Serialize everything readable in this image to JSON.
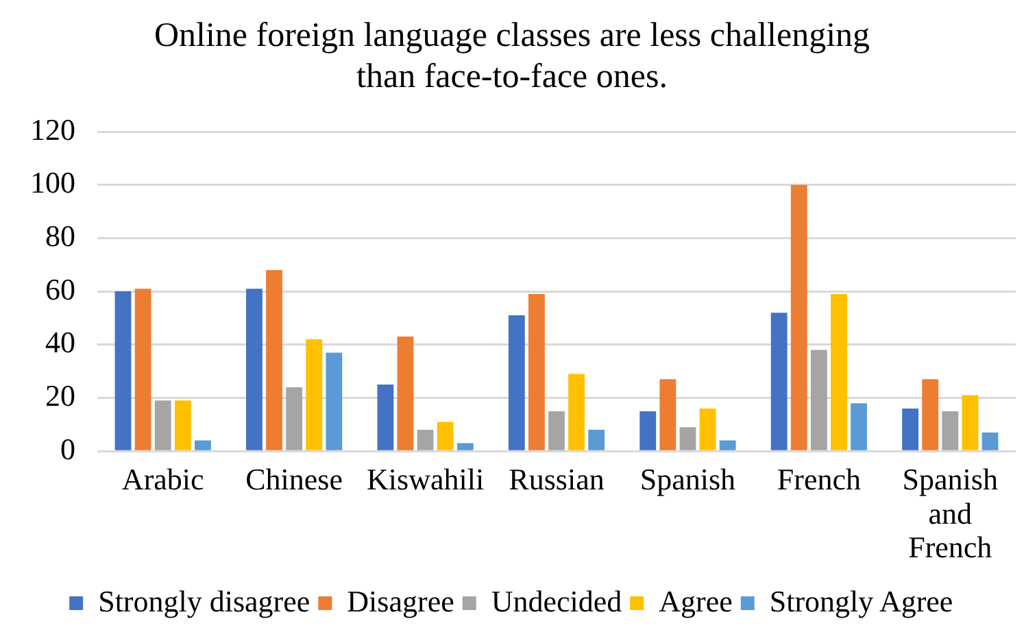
{
  "chart_data": {
    "type": "bar",
    "title": "Online foreign language classes are less challenging than face-to-face ones.",
    "categories": [
      "Arabic",
      "Chinese",
      "Kiswahili",
      "Russian",
      "Spanish",
      "French",
      "Spanish and French"
    ],
    "series": [
      {
        "name": "Strongly disagree",
        "color": "#4472c4",
        "values": [
          60,
          61,
          25,
          51,
          15,
          52,
          16
        ]
      },
      {
        "name": "Disagree",
        "color": "#ed7d31",
        "values": [
          61,
          68,
          43,
          59,
          27,
          100,
          27
        ]
      },
      {
        "name": "Undecided",
        "color": "#a5a5a5",
        "values": [
          19,
          24,
          8,
          15,
          9,
          38,
          15
        ]
      },
      {
        "name": "Agree",
        "color": "#ffc000",
        "values": [
          19,
          42,
          11,
          29,
          16,
          59,
          21
        ]
      },
      {
        "name": "Strongly Agree",
        "color": "#5b9bd5",
        "values": [
          4,
          37,
          3,
          8,
          4,
          18,
          7
        ]
      }
    ],
    "ylim": [
      0,
      120
    ],
    "yticks": [
      0,
      20,
      40,
      60,
      80,
      100,
      120
    ],
    "grid": "y",
    "legend": "bottom"
  }
}
